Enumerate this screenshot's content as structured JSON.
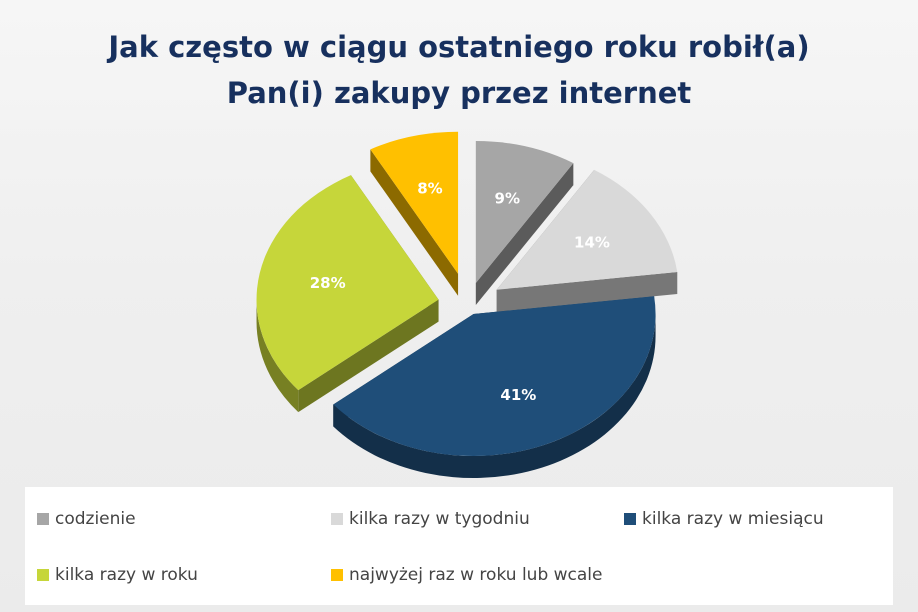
{
  "title": {
    "line1": "Jak często w ciągu ostatniego roku robił(a)",
    "line2": "Pan(i) zakupy przez internet"
  },
  "chart_data": {
    "type": "pie",
    "style": "3d-exploded",
    "title": "Jak często w ciągu ostatniego roku robił(a) Pan(i) zakupy przez internet",
    "categories": [
      "codzienie",
      "kilka razy w tygodniu",
      "kilka razy w miesiącu",
      "kilka razy w roku",
      "najwyżej raz w roku lub wcale"
    ],
    "values": [
      9,
      14,
      41,
      28,
      8
    ],
    "labels": [
      "9%",
      "14%",
      "41%",
      "28%",
      "8%"
    ],
    "colors": [
      "#a6a6a6",
      "#d9d9d9",
      "#1f4e79",
      "#c6d63a",
      "#ffc000"
    ],
    "label_colors": [
      "#ffffff",
      "#ffffff",
      "#ffffff",
      "#ffffff",
      "#ffffff"
    ],
    "legend_position": "bottom"
  },
  "legend": [
    {
      "label": "codzienie",
      "color": "#a6a6a6"
    },
    {
      "label": "kilka razy w tygodniu",
      "color": "#d9d9d9"
    },
    {
      "label": "kilka razy w miesiącu",
      "color": "#1f4e79"
    },
    {
      "label": "kilka razy w roku",
      "color": "#c6d63a"
    },
    {
      "label": "najwyżej raz w roku lub wcale",
      "color": "#ffc000"
    }
  ]
}
